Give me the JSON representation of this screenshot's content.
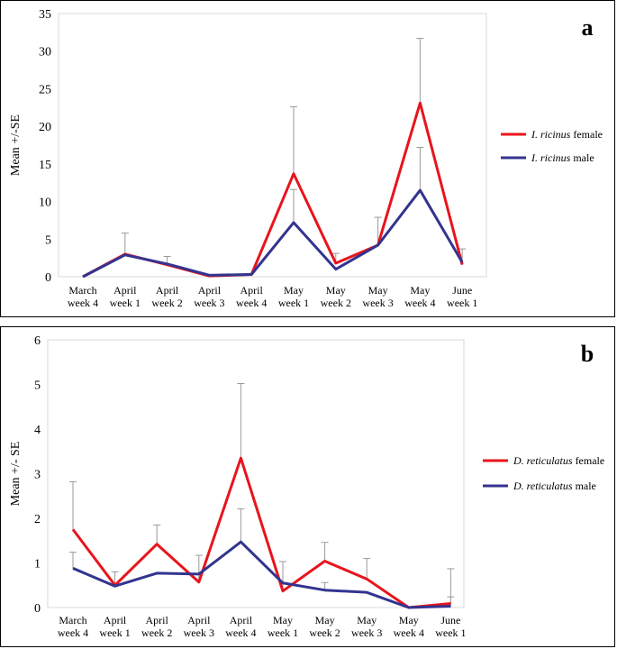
{
  "chart_data": [
    {
      "type": "line",
      "panel_label": "a",
      "ylabel": "Mean +/-SE",
      "ylim": [
        0,
        35
      ],
      "yticks": [
        0,
        5,
        10,
        15,
        20,
        25,
        30,
        35
      ],
      "grid": false,
      "legend_position": "right",
      "categories": [
        [
          "March",
          "week 4"
        ],
        [
          "April",
          "week 1"
        ],
        [
          "April",
          "week 2"
        ],
        [
          "April",
          "week 3"
        ],
        [
          "April",
          "week 4"
        ],
        [
          "May",
          "week 1"
        ],
        [
          "May",
          "week 2"
        ],
        [
          "May",
          "week 3"
        ],
        [
          "May",
          "week 4"
        ],
        [
          "June",
          "week 1"
        ]
      ],
      "series": [
        {
          "species": "I. ricinus",
          "sex": "female",
          "color": "#e8141c",
          "values": [
            0,
            3.0,
            1.6,
            0.1,
            0.3,
            13.7,
            1.8,
            4.2,
            23.1,
            1.6
          ],
          "errors": [
            0,
            2.8,
            1.1,
            0,
            0,
            8.9,
            1.3,
            3.7,
            8.6,
            2.1
          ]
        },
        {
          "species": "I. ricinus",
          "sex": "male",
          "color": "#33348f",
          "values": [
            0,
            2.9,
            1.7,
            0.2,
            0.3,
            7.2,
            1.0,
            4.2,
            11.5,
            1.9
          ],
          "errors": [
            0,
            0,
            0,
            0,
            0,
            4.4,
            0,
            0,
            5.7,
            0
          ]
        }
      ]
    },
    {
      "type": "line",
      "panel_label": "b",
      "ylabel": "Mean +/- SE",
      "ylim": [
        0,
        6
      ],
      "yticks": [
        0,
        1,
        2,
        3,
        4,
        5,
        6
      ],
      "grid": false,
      "legend_position": "right",
      "categories": [
        [
          "March",
          "week 4"
        ],
        [
          "April",
          "week 1"
        ],
        [
          "April",
          "week 2"
        ],
        [
          "April",
          "week 3"
        ],
        [
          "April",
          "week 4"
        ],
        [
          "May",
          "week 1"
        ],
        [
          "May",
          "week 2"
        ],
        [
          "May",
          "week 3"
        ],
        [
          "May",
          "week 4"
        ],
        [
          "June",
          "week 1"
        ]
      ],
      "series": [
        {
          "species": "D. reticulatus",
          "sex": "female",
          "color": "#e8141c",
          "values": [
            1.75,
            0.5,
            1.42,
            0.57,
            3.35,
            0.37,
            1.04,
            0.64,
            0.0,
            0.09
          ],
          "errors": [
            1.07,
            0.3,
            0.43,
            0.6,
            1.67,
            0.66,
            0.42,
            0.46,
            0,
            0.78
          ]
        },
        {
          "species": "D. reticulatus",
          "sex": "male",
          "color": "#33348f",
          "values": [
            0.88,
            0.48,
            0.77,
            0.75,
            1.47,
            0.55,
            0.39,
            0.34,
            0.0,
            0.03
          ],
          "errors": [
            0.36,
            0,
            0,
            0,
            0.74,
            0,
            0.17,
            0,
            0,
            0.21
          ]
        }
      ]
    }
  ]
}
